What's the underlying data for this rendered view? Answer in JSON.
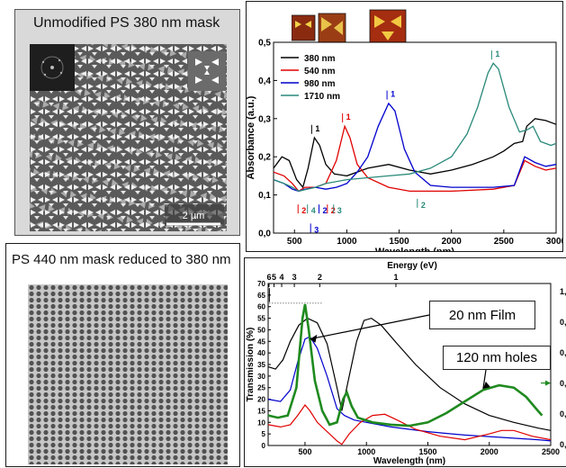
{
  "top_left": {
    "caption": "Unmodified PS 380 nm mask",
    "scale_label": "2 µm"
  },
  "bottom_left": {
    "caption": "PS 440 nm mask reduced to 380 nm"
  },
  "chart_data": [
    {
      "type": "line",
      "xlabel": "Wavelength (nm)",
      "ylabel": "Absorbance (a.u.)",
      "xlim": [
        300,
        3000
      ],
      "ylim": [
        0.0,
        0.5
      ],
      "xticks": [
        500,
        1000,
        1500,
        2000,
        2500,
        3000
      ],
      "xtick_labels": [
        "500",
        "1000",
        "1500",
        "2000",
        "2500",
        "3000"
      ],
      "yticks": [
        0.0,
        0.1,
        0.2,
        0.3,
        0.4,
        0.5
      ],
      "ytick_labels": [
        "0,0",
        "0,1",
        "0,2",
        "0,3",
        "0,4",
        "0,5"
      ],
      "legend_position": "top-left",
      "series": [
        {
          "name": "380 nm",
          "color": "#000000",
          "points": [
            [
              300,
              0.17
            ],
            [
              380,
              0.2
            ],
            [
              450,
              0.19
            ],
            [
              520,
              0.14
            ],
            [
              580,
              0.12
            ],
            [
              630,
              0.17
            ],
            [
              690,
              0.25
            ],
            [
              740,
              0.23
            ],
            [
              800,
              0.18
            ],
            [
              880,
              0.155
            ],
            [
              1000,
              0.15
            ],
            [
              1200,
              0.17
            ],
            [
              1400,
              0.18
            ],
            [
              1600,
              0.165
            ],
            [
              1800,
              0.155
            ],
            [
              2000,
              0.165
            ],
            [
              2200,
              0.18
            ],
            [
              2400,
              0.2
            ],
            [
              2500,
              0.215
            ],
            [
              2600,
              0.235
            ],
            [
              2680,
              0.24
            ],
            [
              2720,
              0.28
            ],
            [
              2800,
              0.3
            ],
            [
              2900,
              0.295
            ],
            [
              3000,
              0.285
            ]
          ]
        },
        {
          "name": "540 nm",
          "color": "#e00000",
          "points": [
            [
              300,
              0.16
            ],
            [
              400,
              0.15
            ],
            [
              480,
              0.13
            ],
            [
              540,
              0.11
            ],
            [
              600,
              0.12
            ],
            [
              700,
              0.12
            ],
            [
              800,
              0.13
            ],
            [
              900,
              0.19
            ],
            [
              980,
              0.28
            ],
            [
              1030,
              0.25
            ],
            [
              1100,
              0.18
            ],
            [
              1200,
              0.145
            ],
            [
              1400,
              0.12
            ],
            [
              1600,
              0.11
            ],
            [
              2000,
              0.11
            ],
            [
              2400,
              0.115
            ],
            [
              2600,
              0.125
            ],
            [
              2700,
              0.19
            ],
            [
              2800,
              0.175
            ],
            [
              2900,
              0.165
            ],
            [
              3000,
              0.17
            ]
          ]
        },
        {
          "name": "980 nm",
          "color": "#0000cc",
          "points": [
            [
              300,
              0.14
            ],
            [
              400,
              0.13
            ],
            [
              480,
              0.115
            ],
            [
              540,
              0.11
            ],
            [
              600,
              0.115
            ],
            [
              700,
              0.12
            ],
            [
              800,
              0.115
            ],
            [
              900,
              0.12
            ],
            [
              1000,
              0.13
            ],
            [
              1100,
              0.16
            ],
            [
              1200,
              0.2
            ],
            [
              1300,
              0.28
            ],
            [
              1400,
              0.34
            ],
            [
              1460,
              0.32
            ],
            [
              1550,
              0.22
            ],
            [
              1650,
              0.16
            ],
            [
              1800,
              0.125
            ],
            [
              2000,
              0.12
            ],
            [
              2400,
              0.12
            ],
            [
              2600,
              0.125
            ],
            [
              2700,
              0.2
            ],
            [
              2800,
              0.185
            ],
            [
              2900,
              0.175
            ],
            [
              3000,
              0.18
            ]
          ]
        },
        {
          "name": "1710 nm",
          "color": "#2a8a7a",
          "points": [
            [
              300,
              0.14
            ],
            [
              400,
              0.13
            ],
            [
              480,
              0.12
            ],
            [
              540,
              0.11
            ],
            [
              620,
              0.115
            ],
            [
              700,
              0.12
            ],
            [
              800,
              0.13
            ],
            [
              1000,
              0.14
            ],
            [
              1200,
              0.145
            ],
            [
              1400,
              0.15
            ],
            [
              1600,
              0.155
            ],
            [
              1800,
              0.17
            ],
            [
              2000,
              0.2
            ],
            [
              2150,
              0.26
            ],
            [
              2250,
              0.33
            ],
            [
              2350,
              0.42
            ],
            [
              2400,
              0.445
            ],
            [
              2450,
              0.43
            ],
            [
              2550,
              0.33
            ],
            [
              2650,
              0.265
            ],
            [
              2720,
              0.27
            ],
            [
              2780,
              0.28
            ],
            [
              2850,
              0.24
            ],
            [
              2950,
              0.23
            ],
            [
              3000,
              0.235
            ]
          ]
        }
      ],
      "annotations": [
        {
          "text": "1",
          "x": 690,
          "y": 0.26,
          "dir": "down",
          "color": "#000000"
        },
        {
          "text": "1",
          "x": 985,
          "y": 0.29,
          "dir": "down",
          "color": "#e00000"
        },
        {
          "text": "1",
          "x": 1410,
          "y": 0.35,
          "dir": "down",
          "color": "#0000cc"
        },
        {
          "text": "1",
          "x": 2410,
          "y": 0.455,
          "dir": "down",
          "color": "#2a8a7a"
        },
        {
          "text": "2",
          "x": 560,
          "y": 0.075,
          "dir": "up",
          "color": "#e00000"
        },
        {
          "text": "4",
          "x": 650,
          "y": 0.075,
          "dir": "up",
          "color": "#2a8a7a"
        },
        {
          "text": "2",
          "x": 760,
          "y": 0.075,
          "dir": "up",
          "color": "#0000cc"
        },
        {
          "text": "2",
          "x": 840,
          "y": 0.075,
          "dir": "up",
          "color": "#e00000"
        },
        {
          "text": "3",
          "x": 900,
          "y": 0.075,
          "dir": "up",
          "color": "#2a8a7a"
        },
        {
          "text": "3",
          "x": 680,
          "y": 0.025,
          "dir": "up",
          "color": "#0000cc"
        },
        {
          "text": "2",
          "x": 1700,
          "y": 0.09,
          "dir": "up",
          "color": "#2a8a7a"
        }
      ]
    },
    {
      "type": "line",
      "xlabel": "Wavelength (nm)",
      "ylabel": "Transmission (%)",
      "top_axis_label": "Energy (eV)",
      "xlim": [
        200,
        2500
      ],
      "ylim": [
        0,
        70
      ],
      "xticks": [
        500,
        1000,
        1500,
        2000,
        2500
      ],
      "xtick_labels": [
        "500",
        "1000",
        "1500",
        "2000",
        "2500"
      ],
      "yticks": [
        0,
        5,
        10,
        15,
        20,
        25,
        30,
        35,
        40,
        45,
        50,
        55,
        60,
        65,
        70
      ],
      "ytick_labels": [
        "0",
        "5",
        "10",
        "15",
        "20",
        "25",
        "30",
        "35",
        "40",
        "45",
        "50",
        "55",
        "60",
        "65",
        "70"
      ],
      "top_ticks": [
        {
          "label": "6",
          "wavelength": 207
        },
        {
          "label": "5",
          "wavelength": 248
        },
        {
          "label": "4",
          "wavelength": 310
        },
        {
          "label": "3",
          "wavelength": 413
        },
        {
          "label": "2",
          "wavelength": 620
        },
        {
          "label": "1",
          "wavelength": 1240
        }
      ],
      "right_tick_labels": [
        "1,",
        "0,",
        "0,",
        "0,",
        "0,",
        "0,"
      ],
      "series": [
        {
          "color": "#000000",
          "points": [
            [
              200,
              34
            ],
            [
              260,
              33
            ],
            [
              320,
              37
            ],
            [
              380,
              45
            ],
            [
              450,
              52
            ],
            [
              520,
              55
            ],
            [
              600,
              53
            ],
            [
              680,
              44
            ],
            [
              760,
              25
            ],
            [
              800,
              15
            ],
            [
              860,
              30
            ],
            [
              920,
              45
            ],
            [
              980,
              54
            ],
            [
              1040,
              55
            ],
            [
              1120,
              52
            ],
            [
              1250,
              44
            ],
            [
              1400,
              35
            ],
            [
              1600,
              25
            ],
            [
              1800,
              18
            ],
            [
              2000,
              13
            ],
            [
              2200,
              10
            ],
            [
              2400,
              7.5
            ],
            [
              2500,
              6.5
            ]
          ]
        },
        {
          "color": "#0000cc",
          "points": [
            [
              200,
              20
            ],
            [
              300,
              19
            ],
            [
              380,
              24
            ],
            [
              440,
              36
            ],
            [
              500,
              46
            ],
            [
              540,
              47
            ],
            [
              600,
              42
            ],
            [
              680,
              30
            ],
            [
              760,
              16
            ],
            [
              820,
              13
            ],
            [
              900,
              11
            ],
            [
              1000,
              10
            ],
            [
              1200,
              8
            ],
            [
              1500,
              6
            ],
            [
              1800,
              4.5
            ],
            [
              2100,
              3.5
            ],
            [
              2400,
              2.5
            ],
            [
              2500,
              2
            ]
          ]
        },
        {
          "color": "#e00000",
          "points": [
            [
              200,
              9
            ],
            [
              300,
              8
            ],
            [
              380,
              9
            ],
            [
              440,
              13
            ],
            [
              500,
              17.5
            ],
            [
              540,
              15
            ],
            [
              600,
              10
            ],
            [
              680,
              6
            ],
            [
              760,
              2
            ],
            [
              800,
              0.5
            ],
            [
              860,
              5
            ],
            [
              950,
              10
            ],
            [
              1050,
              13
            ],
            [
              1150,
              13.5
            ],
            [
              1250,
              11
            ],
            [
              1400,
              7
            ],
            [
              1600,
              4
            ],
            [
              1800,
              2.5
            ],
            [
              2000,
              5
            ],
            [
              2100,
              6.5
            ],
            [
              2200,
              6.5
            ],
            [
              2350,
              4
            ],
            [
              2500,
              2.5
            ]
          ]
        },
        {
          "color": "#1f8a1f",
          "points": [
            [
              200,
              13
            ],
            [
              280,
              12
            ],
            [
              360,
              13
            ],
            [
              430,
              25
            ],
            [
              480,
              55
            ],
            [
              500,
              61
            ],
            [
              530,
              50
            ],
            [
              580,
              28
            ],
            [
              640,
              15
            ],
            [
              700,
              9
            ],
            [
              760,
              10
            ],
            [
              810,
              20
            ],
            [
              840,
              23
            ],
            [
              880,
              17
            ],
            [
              930,
              12
            ],
            [
              1050,
              10
            ],
            [
              1200,
              9
            ],
            [
              1350,
              8.5
            ],
            [
              1500,
              10
            ],
            [
              1650,
              14
            ],
            [
              1800,
              19
            ],
            [
              1950,
              24
            ],
            [
              2080,
              26
            ],
            [
              2200,
              25
            ],
            [
              2300,
              21
            ],
            [
              2380,
              16
            ],
            [
              2430,
              13
            ]
          ]
        }
      ],
      "callouts": [
        "20 nm Film",
        "120 nm holes"
      ]
    }
  ]
}
